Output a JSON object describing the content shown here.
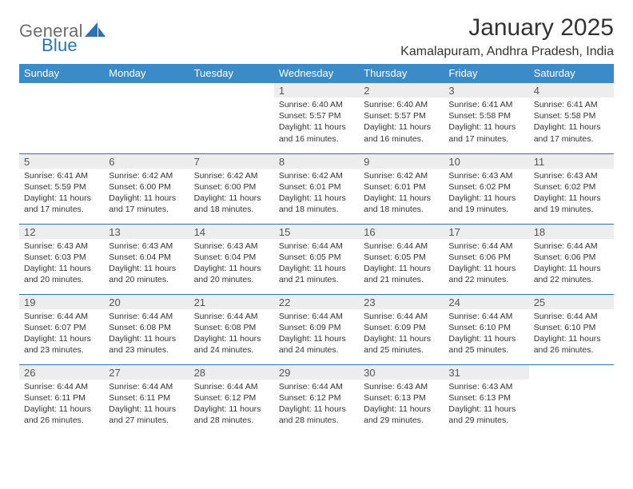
{
  "brand": {
    "word1": "General",
    "word2": "Blue"
  },
  "title": "January 2025",
  "location": "Kamalapuram, Andhra Pradesh, India",
  "colors": {
    "header_bg": "#3b8bc8",
    "header_text": "#ffffff",
    "rule": "#2a72b5",
    "daynum_bg": "#ededed",
    "logo_gray": "#6d6d6d",
    "logo_blue": "#2a72b5"
  },
  "day_headers": [
    "Sunday",
    "Monday",
    "Tuesday",
    "Wednesday",
    "Thursday",
    "Friday",
    "Saturday"
  ],
  "weeks": [
    [
      {
        "n": "",
        "sr": "",
        "ss": "",
        "dl": ""
      },
      {
        "n": "",
        "sr": "",
        "ss": "",
        "dl": ""
      },
      {
        "n": "",
        "sr": "",
        "ss": "",
        "dl": ""
      },
      {
        "n": "1",
        "sr": "6:40 AM",
        "ss": "5:57 PM",
        "dl": "11 hours and 16 minutes."
      },
      {
        "n": "2",
        "sr": "6:40 AM",
        "ss": "5:57 PM",
        "dl": "11 hours and 16 minutes."
      },
      {
        "n": "3",
        "sr": "6:41 AM",
        "ss": "5:58 PM",
        "dl": "11 hours and 17 minutes."
      },
      {
        "n": "4",
        "sr": "6:41 AM",
        "ss": "5:58 PM",
        "dl": "11 hours and 17 minutes."
      }
    ],
    [
      {
        "n": "5",
        "sr": "6:41 AM",
        "ss": "5:59 PM",
        "dl": "11 hours and 17 minutes."
      },
      {
        "n": "6",
        "sr": "6:42 AM",
        "ss": "6:00 PM",
        "dl": "11 hours and 17 minutes."
      },
      {
        "n": "7",
        "sr": "6:42 AM",
        "ss": "6:00 PM",
        "dl": "11 hours and 18 minutes."
      },
      {
        "n": "8",
        "sr": "6:42 AM",
        "ss": "6:01 PM",
        "dl": "11 hours and 18 minutes."
      },
      {
        "n": "9",
        "sr": "6:42 AM",
        "ss": "6:01 PM",
        "dl": "11 hours and 18 minutes."
      },
      {
        "n": "10",
        "sr": "6:43 AM",
        "ss": "6:02 PM",
        "dl": "11 hours and 19 minutes."
      },
      {
        "n": "11",
        "sr": "6:43 AM",
        "ss": "6:02 PM",
        "dl": "11 hours and 19 minutes."
      }
    ],
    [
      {
        "n": "12",
        "sr": "6:43 AM",
        "ss": "6:03 PM",
        "dl": "11 hours and 20 minutes."
      },
      {
        "n": "13",
        "sr": "6:43 AM",
        "ss": "6:04 PM",
        "dl": "11 hours and 20 minutes."
      },
      {
        "n": "14",
        "sr": "6:43 AM",
        "ss": "6:04 PM",
        "dl": "11 hours and 20 minutes."
      },
      {
        "n": "15",
        "sr": "6:44 AM",
        "ss": "6:05 PM",
        "dl": "11 hours and 21 minutes."
      },
      {
        "n": "16",
        "sr": "6:44 AM",
        "ss": "6:05 PM",
        "dl": "11 hours and 21 minutes."
      },
      {
        "n": "17",
        "sr": "6:44 AM",
        "ss": "6:06 PM",
        "dl": "11 hours and 22 minutes."
      },
      {
        "n": "18",
        "sr": "6:44 AM",
        "ss": "6:06 PM",
        "dl": "11 hours and 22 minutes."
      }
    ],
    [
      {
        "n": "19",
        "sr": "6:44 AM",
        "ss": "6:07 PM",
        "dl": "11 hours and 23 minutes."
      },
      {
        "n": "20",
        "sr": "6:44 AM",
        "ss": "6:08 PM",
        "dl": "11 hours and 23 minutes."
      },
      {
        "n": "21",
        "sr": "6:44 AM",
        "ss": "6:08 PM",
        "dl": "11 hours and 24 minutes."
      },
      {
        "n": "22",
        "sr": "6:44 AM",
        "ss": "6:09 PM",
        "dl": "11 hours and 24 minutes."
      },
      {
        "n": "23",
        "sr": "6:44 AM",
        "ss": "6:09 PM",
        "dl": "11 hours and 25 minutes."
      },
      {
        "n": "24",
        "sr": "6:44 AM",
        "ss": "6:10 PM",
        "dl": "11 hours and 25 minutes."
      },
      {
        "n": "25",
        "sr": "6:44 AM",
        "ss": "6:10 PM",
        "dl": "11 hours and 26 minutes."
      }
    ],
    [
      {
        "n": "26",
        "sr": "6:44 AM",
        "ss": "6:11 PM",
        "dl": "11 hours and 26 minutes."
      },
      {
        "n": "27",
        "sr": "6:44 AM",
        "ss": "6:11 PM",
        "dl": "11 hours and 27 minutes."
      },
      {
        "n": "28",
        "sr": "6:44 AM",
        "ss": "6:12 PM",
        "dl": "11 hours and 28 minutes."
      },
      {
        "n": "29",
        "sr": "6:44 AM",
        "ss": "6:12 PM",
        "dl": "11 hours and 28 minutes."
      },
      {
        "n": "30",
        "sr": "6:43 AM",
        "ss": "6:13 PM",
        "dl": "11 hours and 29 minutes."
      },
      {
        "n": "31",
        "sr": "6:43 AM",
        "ss": "6:13 PM",
        "dl": "11 hours and 29 minutes."
      },
      {
        "n": "",
        "sr": "",
        "ss": "",
        "dl": ""
      }
    ]
  ],
  "labels": {
    "sunrise": "Sunrise:",
    "sunset": "Sunset:",
    "daylight": "Daylight:"
  }
}
